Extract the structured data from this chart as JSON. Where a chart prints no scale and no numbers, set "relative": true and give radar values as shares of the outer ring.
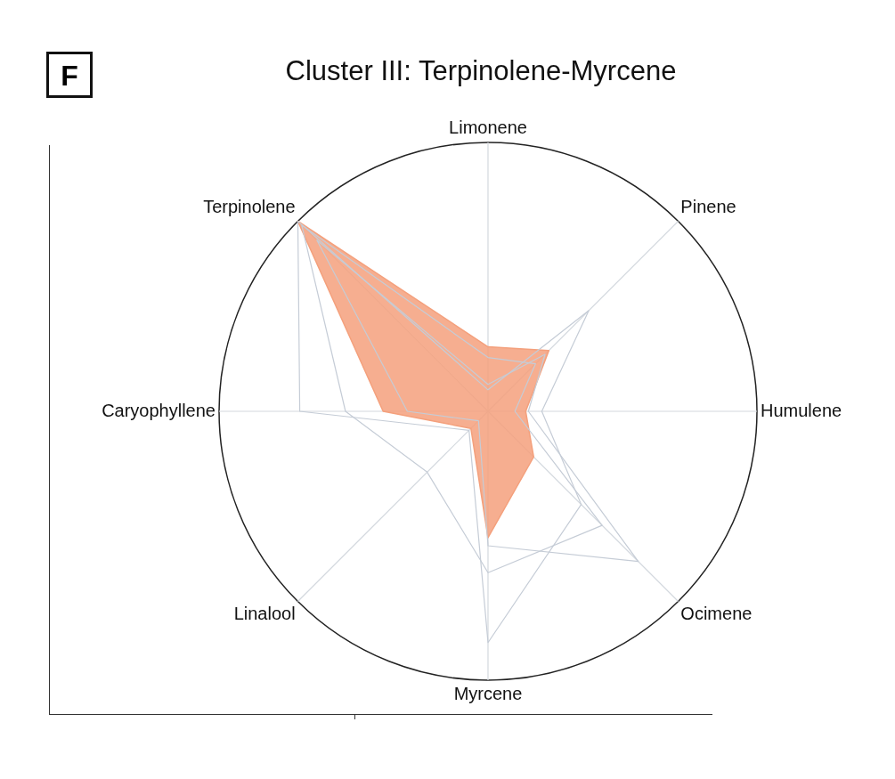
{
  "chart_data": {
    "type": "radar",
    "title": "Cluster III: Terpinolene-Myrcene",
    "annotations": [
      "F"
    ],
    "relative": true,
    "categories": [
      "Limonene",
      "Pinene",
      "Humulene",
      "Ocimene",
      "Myrcene",
      "Linalool",
      "Caryophyllene",
      "Terpinolene"
    ],
    "series": [
      {
        "color": "#c5ccd6",
        "values": [
          0.08,
          0.53,
          0.2,
          0.49,
          0.86,
          0.1,
          0.7,
          1
        ]
      },
      {
        "color": "#c5ccd6",
        "values": [
          0.2,
          0.25,
          0.1,
          0.6,
          0.6,
          0.32,
          0.53,
          0.98
        ]
      },
      {
        "color": "#c5ccd6",
        "values": [
          0.1,
          0.3,
          0.15,
          0.79,
          0.5,
          0.05,
          0.3,
          0.9
        ]
      },
      {
        "color": "#f4a07c",
        "values": [
          0.24,
          0.32,
          0.14,
          0.24,
          0.47,
          0.09,
          0.39,
          1
        ]
      }
    ]
  }
}
